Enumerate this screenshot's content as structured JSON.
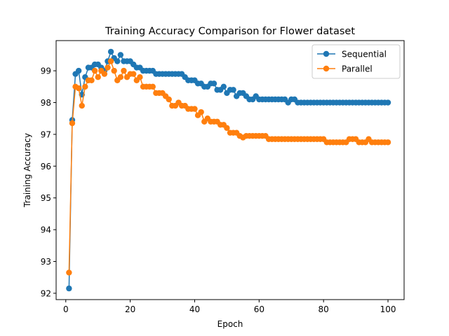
{
  "chart_data": {
    "type": "line",
    "title": "Training Accuracy Comparison for Flower dataset",
    "xlabel": "Epoch",
    "ylabel": "Training Accuracy",
    "xlim": [
      -3,
      105
    ],
    "ylim": [
      91.8,
      99.95
    ],
    "xticks": [
      0,
      20,
      40,
      60,
      80,
      100
    ],
    "yticks": [
      92,
      93,
      94,
      95,
      96,
      97,
      98,
      99
    ],
    "grid": false,
    "legend_position": "top-right",
    "series": [
      {
        "name": "Sequential",
        "color": "#1f77b4",
        "marker": "circle",
        "x": [
          1,
          2,
          3,
          4,
          5,
          6,
          7,
          8,
          9,
          10,
          11,
          12,
          13,
          14,
          15,
          16,
          17,
          18,
          19,
          20,
          21,
          22,
          23,
          24,
          25,
          26,
          27,
          28,
          29,
          30,
          31,
          32,
          33,
          34,
          35,
          36,
          37,
          38,
          39,
          40,
          41,
          42,
          43,
          44,
          45,
          46,
          47,
          48,
          49,
          50,
          51,
          52,
          53,
          54,
          55,
          56,
          57,
          58,
          59,
          60,
          61,
          62,
          63,
          64,
          65,
          66,
          67,
          68,
          69,
          70,
          71,
          72,
          73,
          74,
          75,
          76,
          77,
          78,
          79,
          80,
          81,
          82,
          83,
          84,
          85,
          86,
          87,
          88,
          89,
          90,
          91,
          92,
          93,
          94,
          95,
          96,
          97,
          98,
          99,
          100
        ],
        "y": [
          92.15,
          97.45,
          98.9,
          99.0,
          98.25,
          98.8,
          99.1,
          99.1,
          99.2,
          99.2,
          99.1,
          99.0,
          99.3,
          99.6,
          99.4,
          99.3,
          99.5,
          99.3,
          99.3,
          99.3,
          99.2,
          99.1,
          99.1,
          99.0,
          99.0,
          99.0,
          99.0,
          98.9,
          98.9,
          98.9,
          98.9,
          98.9,
          98.9,
          98.9,
          98.9,
          98.9,
          98.8,
          98.7,
          98.7,
          98.7,
          98.6,
          98.6,
          98.5,
          98.5,
          98.6,
          98.6,
          98.4,
          98.4,
          98.5,
          98.3,
          98.4,
          98.4,
          98.2,
          98.3,
          98.3,
          98.2,
          98.1,
          98.1,
          98.2,
          98.1,
          98.1,
          98.1,
          98.1,
          98.1,
          98.1,
          98.1,
          98.1,
          98.1,
          98.0,
          98.1,
          98.1,
          98.0,
          98.0,
          98.0,
          98.0,
          98.0,
          98.0,
          98.0,
          98.0,
          98.0,
          98.0,
          98.0,
          98.0,
          98.0,
          98.0,
          98.0,
          98.0,
          98.0,
          98.0,
          98.0,
          98.0,
          98.0,
          98.0,
          98.0,
          98.0,
          98.0,
          98.0,
          98.0,
          98.0,
          98.0
        ]
      },
      {
        "name": "Parallel",
        "color": "#ff7f0e",
        "marker": "circle",
        "x": [
          1,
          2,
          3,
          4,
          5,
          6,
          7,
          8,
          9,
          10,
          11,
          12,
          13,
          14,
          15,
          16,
          17,
          18,
          19,
          20,
          21,
          22,
          23,
          24,
          25,
          26,
          27,
          28,
          29,
          30,
          31,
          32,
          33,
          34,
          35,
          36,
          37,
          38,
          39,
          40,
          41,
          42,
          43,
          44,
          45,
          46,
          47,
          48,
          49,
          50,
          51,
          52,
          53,
          54,
          55,
          56,
          57,
          58,
          59,
          60,
          61,
          62,
          63,
          64,
          65,
          66,
          67,
          68,
          69,
          70,
          71,
          72,
          73,
          74,
          75,
          76,
          77,
          78,
          79,
          80,
          81,
          82,
          83,
          84,
          85,
          86,
          87,
          88,
          89,
          90,
          91,
          92,
          93,
          94,
          95,
          96,
          97,
          98,
          99,
          100
        ],
        "y": [
          92.65,
          97.35,
          98.5,
          98.45,
          97.9,
          98.5,
          98.7,
          98.7,
          99.0,
          98.8,
          99.0,
          98.9,
          99.1,
          99.3,
          99.0,
          98.7,
          98.8,
          99.0,
          98.8,
          98.9,
          98.9,
          98.7,
          98.8,
          98.5,
          98.5,
          98.5,
          98.5,
          98.3,
          98.3,
          98.3,
          98.2,
          98.1,
          97.9,
          97.9,
          98.0,
          97.9,
          97.9,
          97.8,
          97.8,
          97.8,
          97.6,
          97.7,
          97.4,
          97.5,
          97.4,
          97.4,
          97.4,
          97.3,
          97.3,
          97.2,
          97.05,
          97.05,
          97.05,
          96.95,
          96.9,
          96.95,
          96.95,
          96.95,
          96.95,
          96.95,
          96.95,
          96.95,
          96.85,
          96.85,
          96.85,
          96.85,
          96.85,
          96.85,
          96.85,
          96.85,
          96.85,
          96.85,
          96.85,
          96.85,
          96.85,
          96.85,
          96.85,
          96.85,
          96.85,
          96.85,
          96.75,
          96.75,
          96.75,
          96.75,
          96.75,
          96.75,
          96.75,
          96.85,
          96.85,
          96.85,
          96.75,
          96.75,
          96.75,
          96.85,
          96.75,
          96.75,
          96.75,
          96.75,
          96.75,
          96.75
        ]
      }
    ]
  }
}
